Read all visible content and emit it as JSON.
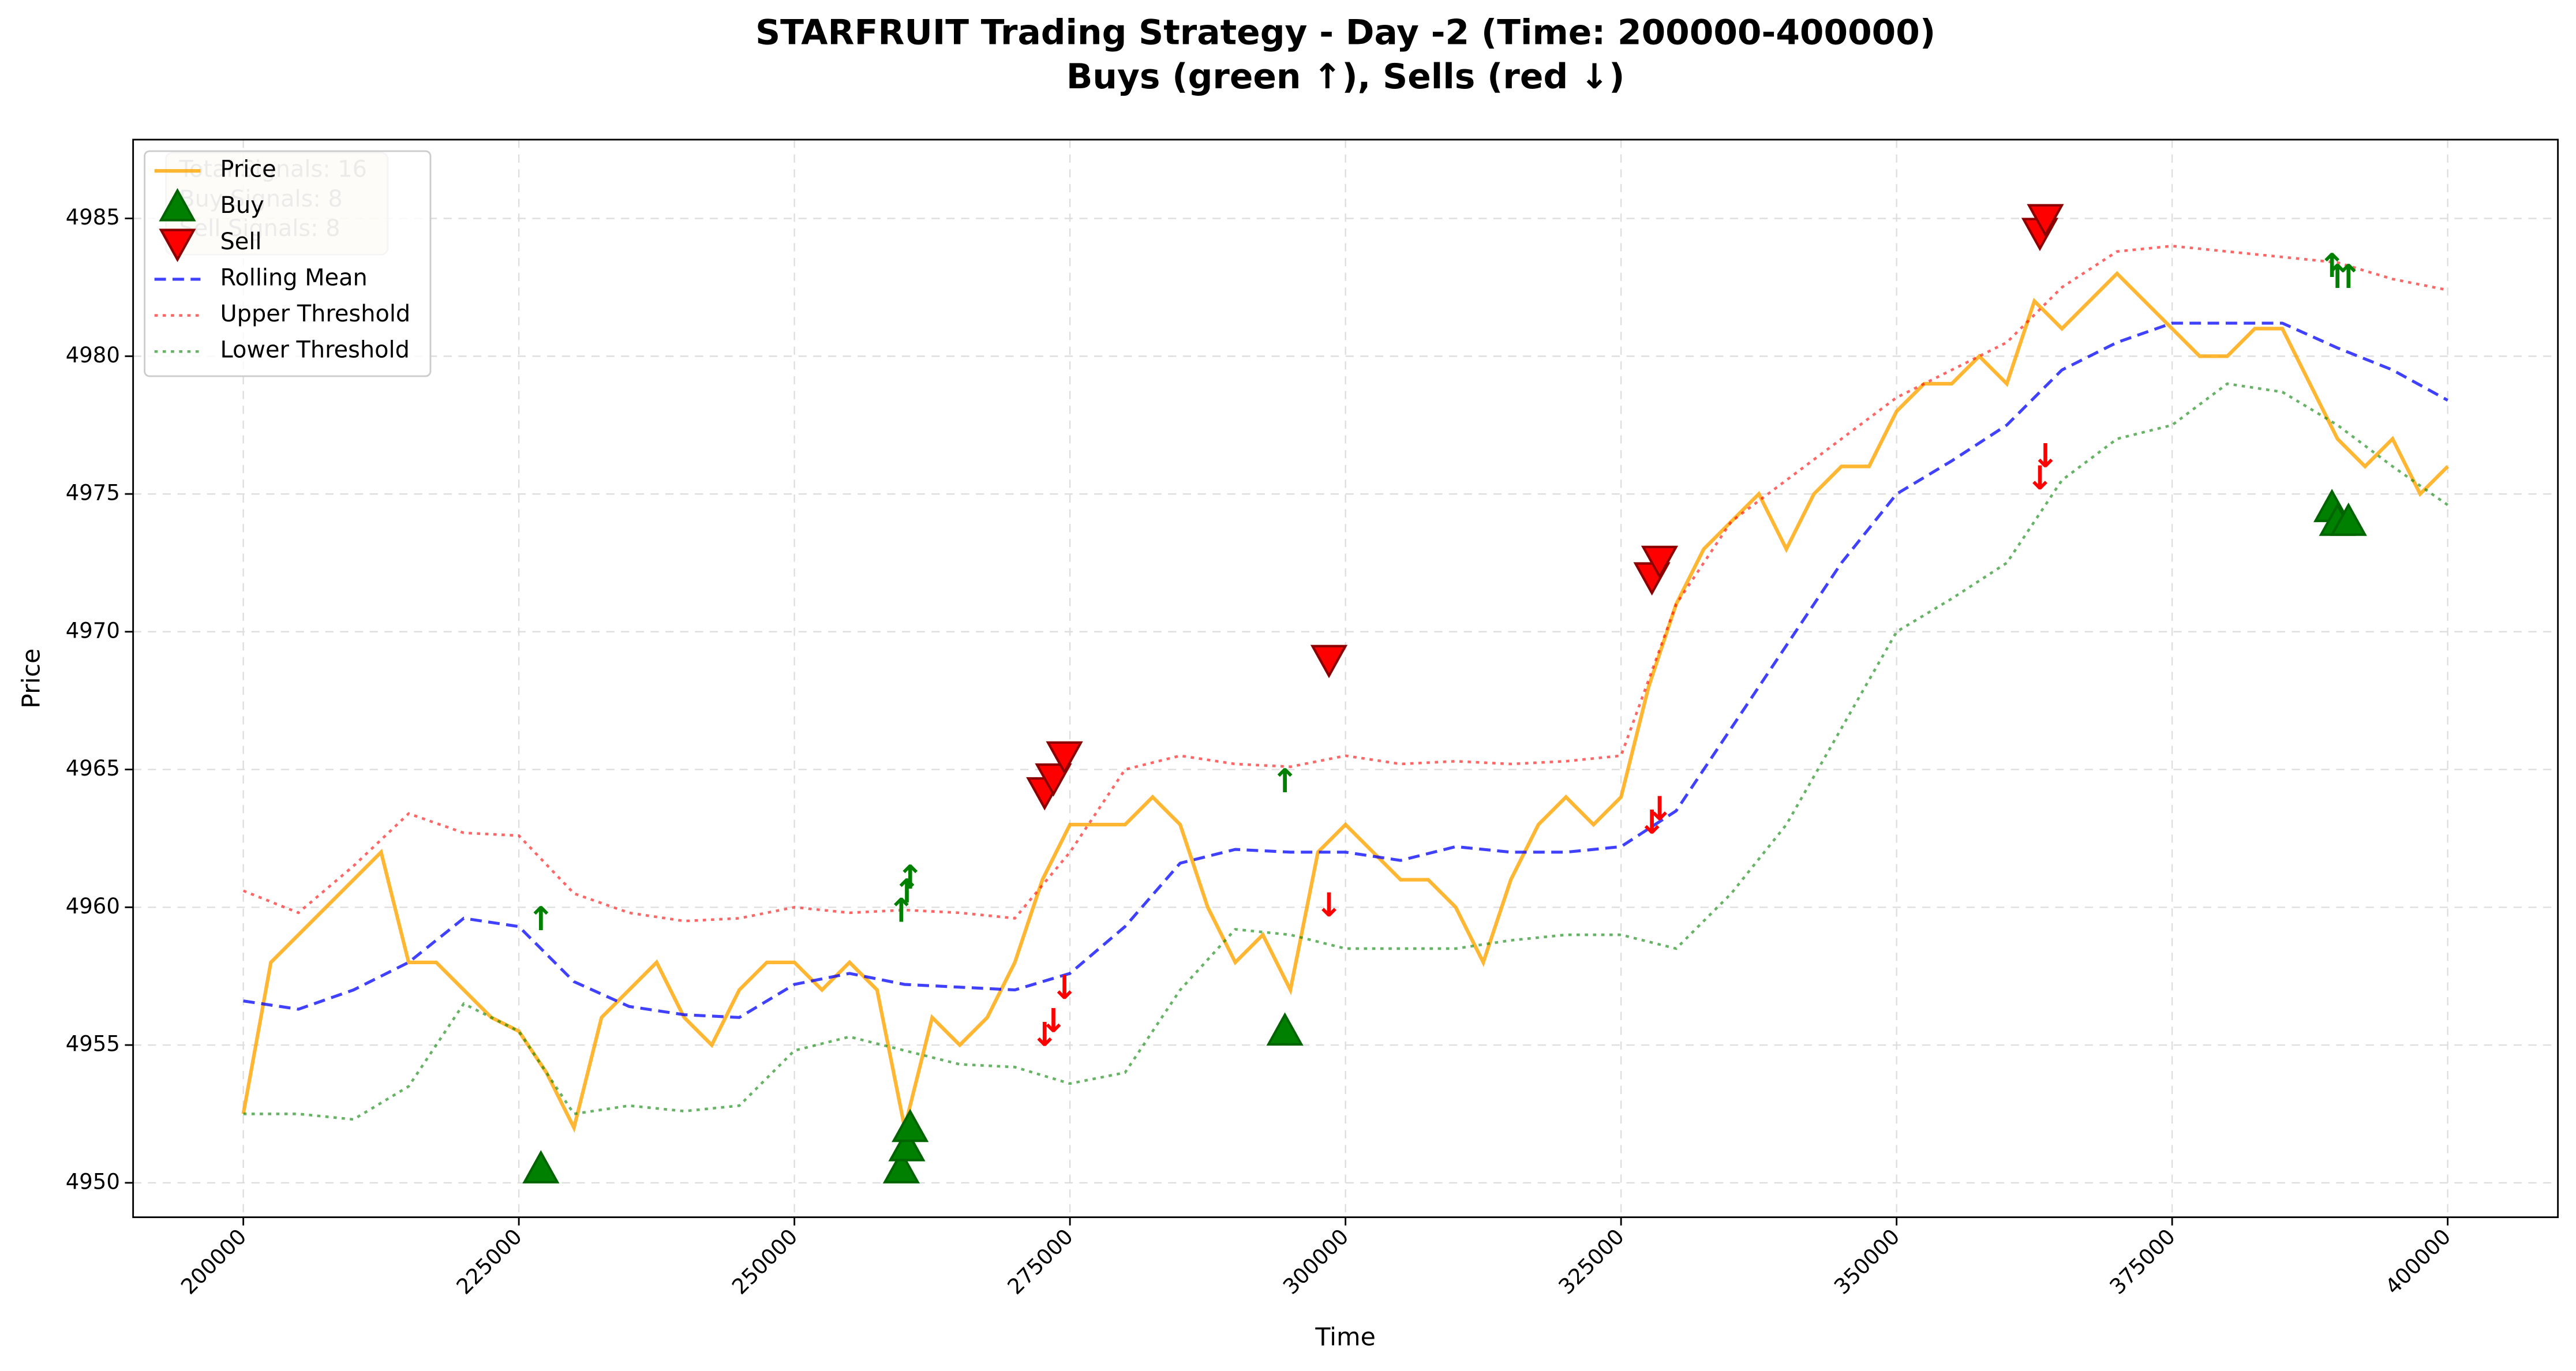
{
  "chart_data": {
    "type": "line",
    "title": "STARFRUIT Trading Strategy - Day -2 (Time: 200000-400000)",
    "subtitle": "Buys (green ↑), Sells (red ↓)",
    "xlabel": "Time",
    "ylabel": "Price",
    "xlim": [
      190000,
      410000
    ],
    "ylim": [
      4948.75,
      4987.86
    ],
    "xticks": [
      200000,
      225000,
      250000,
      275000,
      300000,
      325000,
      350000,
      375000,
      400000
    ],
    "yticks": [
      4950,
      4955,
      4960,
      4965,
      4970,
      4975,
      4980,
      4985
    ],
    "grid": true,
    "legend": "upper left",
    "stats_box": [
      "Total Signals: 16",
      "Buy Signals: 8",
      "Sell Signals: 8"
    ],
    "series": [
      {
        "name": "Price",
        "color": "#ffa500",
        "style": "solid",
        "x": [
          200000,
          202500,
          205000,
          207500,
          210000,
          212500,
          215000,
          217500,
          220000,
          222500,
          225000,
          227500,
          230000,
          232500,
          235000,
          237500,
          240000,
          242500,
          245000,
          247500,
          250000,
          252500,
          255000,
          257500,
          260000,
          262500,
          265000,
          267500,
          270000,
          272500,
          275000,
          277500,
          280000,
          282500,
          285000,
          287500,
          290000,
          292500,
          295000,
          297500,
          300000,
          302500,
          305000,
          307500,
          310000,
          312500,
          315000,
          317500,
          320000,
          322500,
          325000,
          327500,
          330000,
          332500,
          335000,
          337500,
          340000,
          342500,
          345000,
          347500,
          350000,
          352500,
          355000,
          357500,
          360000,
          362500,
          365000,
          367500,
          370000,
          372500,
          375000,
          377500,
          380000,
          382500,
          385000,
          387500,
          390000,
          392500,
          395000,
          397500,
          400000
        ],
        "values": [
          4952.5,
          4958,
          4959,
          4960,
          4961,
          4962,
          4958,
          4958,
          4957,
          4956,
          4955.5,
          4954,
          4952,
          4956,
          4957,
          4958,
          4956,
          4955,
          4957,
          4958,
          4958,
          4957,
          4958,
          4957,
          4952,
          4956,
          4955,
          4956,
          4958,
          4961,
          4963,
          4963,
          4963,
          4964,
          4963,
          4960,
          4958,
          4959,
          4957,
          4962,
          4963,
          4962,
          4961,
          4961,
          4960,
          4958,
          4961,
          4963,
          4964,
          4963,
          4964,
          4968,
          4971,
          4973,
          4974,
          4975,
          4973,
          4975,
          4976,
          4976,
          4978,
          4979,
          4979,
          4980,
          4979,
          4982,
          4981,
          4982,
          4983,
          4982,
          4981,
          4980,
          4980,
          4981,
          4981,
          4979,
          4977,
          4976,
          4977,
          4975,
          4976
        ]
      },
      {
        "name": "Buy",
        "color": "#008000",
        "style": "marker-up",
        "x": [
          227000,
          259700,
          260200,
          260500,
          294500,
          389500,
          390000,
          391000
        ],
        "values": [
          4950.5,
          4950.5,
          4951.3,
          4952,
          4955.5,
          4974.5,
          4974,
          4974
        ]
      },
      {
        "name": "Sell",
        "color": "#ff0000",
        "style": "marker-down",
        "x": [
          272700,
          273500,
          274500,
          298500,
          327800,
          328500,
          363000,
          363500
        ],
        "values": [
          4964.2,
          4964.7,
          4965.5,
          4969,
          4972,
          4972.6,
          4984.5,
          4985
        ]
      },
      {
        "name": "Rolling Mean",
        "color": "#0000ff",
        "style": "dashed",
        "x": [
          200000,
          205000,
          210000,
          215000,
          220000,
          225000,
          230000,
          235000,
          240000,
          245000,
          250000,
          255000,
          260000,
          265000,
          270000,
          275000,
          280000,
          285000,
          290000,
          295000,
          300000,
          305000,
          310000,
          315000,
          320000,
          325000,
          330000,
          335000,
          340000,
          345000,
          350000,
          355000,
          360000,
          365000,
          370000,
          375000,
          380000,
          385000,
          390000,
          395000,
          400000
        ],
        "values": [
          4956.6,
          4956.3,
          4957,
          4958,
          4959.6,
          4959.3,
          4957.3,
          4956.4,
          4956.1,
          4956,
          4957.2,
          4957.6,
          4957.2,
          4957.1,
          4957,
          4957.6,
          4959.3,
          4961.6,
          4962.1,
          4962,
          4962,
          4961.7,
          4962.2,
          4962,
          4962,
          4962.2,
          4963.5,
          4966.5,
          4969.5,
          4972.5,
          4975,
          4976.2,
          4977.5,
          4979.5,
          4980.5,
          4981.2,
          4981.2,
          4981.2,
          4980.3,
          4979.5,
          4978.4
        ]
      },
      {
        "name": "Upper Threshold",
        "color": "#ff0000",
        "style": "dotted",
        "x": [
          200000,
          205000,
          210000,
          215000,
          220000,
          225000,
          230000,
          235000,
          240000,
          245000,
          250000,
          255000,
          260000,
          265000,
          270000,
          275000,
          280000,
          285000,
          290000,
          295000,
          300000,
          305000,
          310000,
          315000,
          320000,
          325000,
          330000,
          335000,
          340000,
          345000,
          350000,
          355000,
          360000,
          365000,
          370000,
          375000,
          380000,
          385000,
          390000,
          395000,
          400000
        ],
        "values": [
          4960.6,
          4959.8,
          4961.5,
          4963.4,
          4962.7,
          4962.6,
          4960.5,
          4959.8,
          4959.5,
          4959.6,
          4960,
          4959.8,
          4959.9,
          4959.8,
          4959.6,
          4962,
          4965,
          4965.5,
          4965.2,
          4965.1,
          4965.5,
          4965.2,
          4965.3,
          4965.2,
          4965.3,
          4965.5,
          4971,
          4974,
          4975.5,
          4977,
          4978.5,
          4979.5,
          4980.5,
          4982.5,
          4983.8,
          4984,
          4983.8,
          4983.6,
          4983.4,
          4982.8,
          4982.4
        ]
      },
      {
        "name": "Lower Threshold",
        "color": "#008000",
        "style": "dotted",
        "x": [
          200000,
          205000,
          210000,
          215000,
          220000,
          225000,
          230000,
          235000,
          240000,
          245000,
          250000,
          255000,
          260000,
          265000,
          270000,
          275000,
          280000,
          285000,
          290000,
          295000,
          300000,
          305000,
          310000,
          315000,
          320000,
          325000,
          330000,
          335000,
          340000,
          345000,
          350000,
          355000,
          360000,
          365000,
          370000,
          375000,
          380000,
          385000,
          390000,
          395000,
          400000
        ],
        "values": [
          4952.5,
          4952.5,
          4952.3,
          4953.5,
          4956.5,
          4955.5,
          4952.5,
          4952.8,
          4952.6,
          4952.8,
          4954.8,
          4955.3,
          4954.8,
          4954.3,
          4954.2,
          4953.6,
          4954,
          4957,
          4959.2,
          4959,
          4958.5,
          4958.5,
          4958.5,
          4958.8,
          4959,
          4959,
          4958.5,
          4960.5,
          4963,
          4966.5,
          4970,
          4971.2,
          4972.5,
          4975.5,
          4977,
          4977.5,
          4979,
          4978.7,
          4977.5,
          4976,
          4974.6
        ]
      }
    ],
    "annotations": [
      {
        "text": "↑",
        "color": "#008000",
        "x": 227000,
        "y": 4959.5
      },
      {
        "text": "↑",
        "color": "#008000",
        "x": 259700,
        "y": 4959.8
      },
      {
        "text": "↑",
        "color": "#008000",
        "x": 260200,
        "y": 4960.5
      },
      {
        "text": "↑",
        "color": "#008000",
        "x": 260500,
        "y": 4961
      },
      {
        "text": "↑",
        "color": "#008000",
        "x": 294500,
        "y": 4964.5
      },
      {
        "text": "↑",
        "color": "#008000",
        "x": 389500,
        "y": 4983.2
      },
      {
        "text": "↑",
        "color": "#008000",
        "x": 390000,
        "y": 4982.8
      },
      {
        "text": "↑",
        "color": "#008000",
        "x": 391000,
        "y": 4982.8
      },
      {
        "text": "↓",
        "color": "#ff0000",
        "x": 272700,
        "y": 4955.3
      },
      {
        "text": "↓",
        "color": "#ff0000",
        "x": 273500,
        "y": 4955.8
      },
      {
        "text": "↓",
        "color": "#ff0000",
        "x": 274500,
        "y": 4957
      },
      {
        "text": "↓",
        "color": "#ff0000",
        "x": 298500,
        "y": 4960
      },
      {
        "text": "↓",
        "color": "#ff0000",
        "x": 327800,
        "y": 4963
      },
      {
        "text": "↓",
        "color": "#ff0000",
        "x": 328500,
        "y": 4963.5
      },
      {
        "text": "↓",
        "color": "#ff0000",
        "x": 363000,
        "y": 4975.5
      },
      {
        "text": "↓",
        "color": "#ff0000",
        "x": 363500,
        "y": 4976.3
      }
    ]
  }
}
